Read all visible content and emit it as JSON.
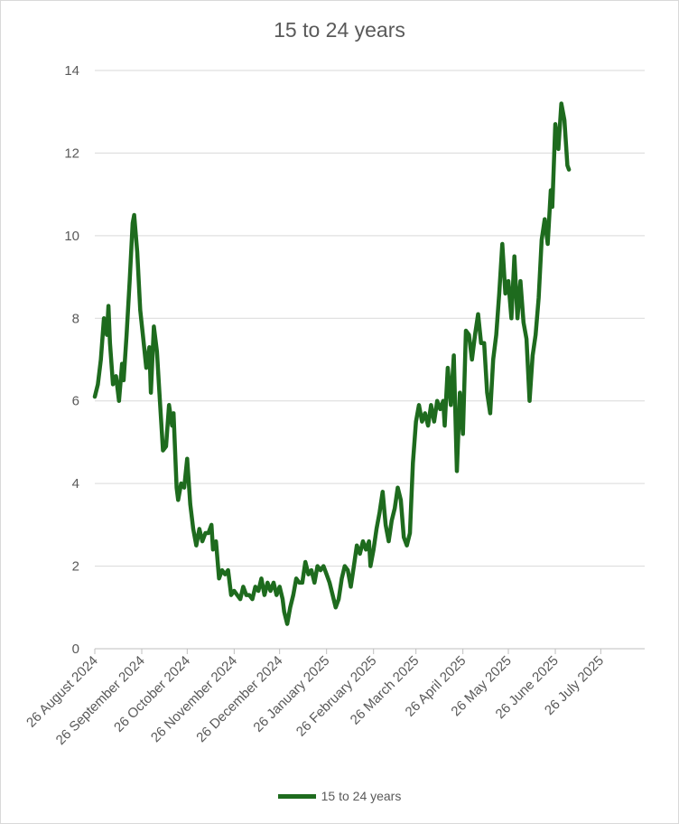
{
  "chart_data": {
    "type": "line",
    "title": "15 to 24 years",
    "xlabel": "",
    "ylabel": "",
    "ylim": [
      0,
      14
    ],
    "y_ticks": [
      0,
      2,
      4,
      6,
      8,
      10,
      12,
      14
    ],
    "x_tick_labels": [
      "26 August 2024",
      "26 September 2024",
      "26 October 2024",
      "26 November 2024",
      "26 December 2024",
      "26 January 2025",
      "26 February 2025",
      "26 March 2025",
      "26 April 2025",
      "26 May 2025",
      "26 June 2025",
      "26 July 2025"
    ],
    "x_range": [
      "2024-08-26",
      "2025-08-24"
    ],
    "grid": "horizontal",
    "legend_position": "bottom",
    "series": [
      {
        "name": "15 to 24 years",
        "color": "#1e6b1e",
        "points": [
          [
            "2024-08-26",
            6.1
          ],
          [
            "2024-08-28",
            6.4
          ],
          [
            "2024-08-30",
            7.0
          ],
          [
            "2024-09-01",
            8.0
          ],
          [
            "2024-09-03",
            7.6
          ],
          [
            "2024-09-04",
            8.3
          ],
          [
            "2024-09-05",
            7.4
          ],
          [
            "2024-09-07",
            6.4
          ],
          [
            "2024-09-09",
            6.6
          ],
          [
            "2024-09-11",
            6.0
          ],
          [
            "2024-09-13",
            6.9
          ],
          [
            "2024-09-14",
            6.5
          ],
          [
            "2024-09-16",
            7.6
          ],
          [
            "2024-09-18",
            8.9
          ],
          [
            "2024-09-20",
            10.3
          ],
          [
            "2024-09-21",
            10.5
          ],
          [
            "2024-09-23",
            9.6
          ],
          [
            "2024-09-25",
            8.2
          ],
          [
            "2024-09-27",
            7.5
          ],
          [
            "2024-09-29",
            6.8
          ],
          [
            "2024-10-01",
            7.3
          ],
          [
            "2024-10-02",
            6.2
          ],
          [
            "2024-10-04",
            7.8
          ],
          [
            "2024-10-06",
            7.2
          ],
          [
            "2024-10-08",
            6.0
          ],
          [
            "2024-10-10",
            4.8
          ],
          [
            "2024-10-12",
            4.9
          ],
          [
            "2024-10-14",
            5.9
          ],
          [
            "2024-10-16",
            5.4
          ],
          [
            "2024-10-17",
            5.7
          ],
          [
            "2024-10-19",
            3.9
          ],
          [
            "2024-10-20",
            3.6
          ],
          [
            "2024-10-22",
            4.0
          ],
          [
            "2024-10-24",
            3.9
          ],
          [
            "2024-10-26",
            4.6
          ],
          [
            "2024-10-28",
            3.5
          ],
          [
            "2024-10-30",
            2.9
          ],
          [
            "2024-11-01",
            2.5
          ],
          [
            "2024-11-03",
            2.9
          ],
          [
            "2024-11-05",
            2.6
          ],
          [
            "2024-11-07",
            2.8
          ],
          [
            "2024-11-09",
            2.8
          ],
          [
            "2024-11-11",
            3.0
          ],
          [
            "2024-11-12",
            2.4
          ],
          [
            "2024-11-14",
            2.6
          ],
          [
            "2024-11-16",
            1.7
          ],
          [
            "2024-11-18",
            1.9
          ],
          [
            "2024-11-20",
            1.8
          ],
          [
            "2024-11-22",
            1.9
          ],
          [
            "2024-11-24",
            1.3
          ],
          [
            "2024-11-26",
            1.4
          ],
          [
            "2024-11-28",
            1.3
          ],
          [
            "2024-11-30",
            1.2
          ],
          [
            "2024-12-02",
            1.5
          ],
          [
            "2024-12-04",
            1.3
          ],
          [
            "2024-12-06",
            1.3
          ],
          [
            "2024-12-08",
            1.2
          ],
          [
            "2024-12-10",
            1.5
          ],
          [
            "2024-12-12",
            1.4
          ],
          [
            "2024-12-14",
            1.7
          ],
          [
            "2024-12-16",
            1.3
          ],
          [
            "2024-12-18",
            1.6
          ],
          [
            "2024-12-20",
            1.4
          ],
          [
            "2024-12-22",
            1.6
          ],
          [
            "2024-12-24",
            1.3
          ],
          [
            "2024-12-26",
            1.5
          ],
          [
            "2024-12-28",
            1.2
          ],
          [
            "2024-12-29",
            0.9
          ],
          [
            "2024-12-31",
            0.6
          ],
          [
            "2025-01-02",
            1.0
          ],
          [
            "2025-01-04",
            1.3
          ],
          [
            "2025-01-06",
            1.7
          ],
          [
            "2025-01-08",
            1.6
          ],
          [
            "2025-01-10",
            1.6
          ],
          [
            "2025-01-12",
            2.1
          ],
          [
            "2025-01-14",
            1.8
          ],
          [
            "2025-01-16",
            1.9
          ],
          [
            "2025-01-18",
            1.6
          ],
          [
            "2025-01-20",
            2.0
          ],
          [
            "2025-01-22",
            1.9
          ],
          [
            "2025-01-24",
            2.0
          ],
          [
            "2025-01-26",
            1.8
          ],
          [
            "2025-01-28",
            1.6
          ],
          [
            "2025-01-30",
            1.3
          ],
          [
            "2025-02-01",
            1.0
          ],
          [
            "2025-02-03",
            1.2
          ],
          [
            "2025-02-05",
            1.7
          ],
          [
            "2025-02-07",
            2.0
          ],
          [
            "2025-02-09",
            1.9
          ],
          [
            "2025-02-11",
            1.5
          ],
          [
            "2025-02-13",
            2.0
          ],
          [
            "2025-02-15",
            2.5
          ],
          [
            "2025-02-17",
            2.3
          ],
          [
            "2025-02-19",
            2.6
          ],
          [
            "2025-02-21",
            2.4
          ],
          [
            "2025-02-23",
            2.6
          ],
          [
            "2025-02-24",
            2.0
          ],
          [
            "2025-02-26",
            2.4
          ],
          [
            "2025-02-28",
            2.9
          ],
          [
            "2025-03-02",
            3.3
          ],
          [
            "2025-03-04",
            3.8
          ],
          [
            "2025-03-06",
            3.0
          ],
          [
            "2025-03-08",
            2.6
          ],
          [
            "2025-03-10",
            3.1
          ],
          [
            "2025-03-12",
            3.4
          ],
          [
            "2025-03-14",
            3.9
          ],
          [
            "2025-03-16",
            3.6
          ],
          [
            "2025-03-18",
            2.7
          ],
          [
            "2025-03-20",
            2.5
          ],
          [
            "2025-03-22",
            2.8
          ],
          [
            "2025-03-24",
            4.5
          ],
          [
            "2025-03-26",
            5.5
          ],
          [
            "2025-03-28",
            5.9
          ],
          [
            "2025-03-30",
            5.5
          ],
          [
            "2025-04-01",
            5.7
          ],
          [
            "2025-04-03",
            5.4
          ],
          [
            "2025-04-05",
            5.9
          ],
          [
            "2025-04-07",
            5.5
          ],
          [
            "2025-04-09",
            6.0
          ],
          [
            "2025-04-11",
            5.8
          ],
          [
            "2025-04-13",
            6.0
          ],
          [
            "2025-04-14",
            5.4
          ],
          [
            "2025-04-16",
            6.8
          ],
          [
            "2025-04-18",
            5.9
          ],
          [
            "2025-04-20",
            7.1
          ],
          [
            "2025-04-22",
            4.3
          ],
          [
            "2025-04-24",
            6.2
          ],
          [
            "2025-04-26",
            5.2
          ],
          [
            "2025-04-28",
            7.7
          ],
          [
            "2025-04-30",
            7.6
          ],
          [
            "2025-05-02",
            7.0
          ],
          [
            "2025-05-04",
            7.6
          ],
          [
            "2025-05-06",
            8.1
          ],
          [
            "2025-05-08",
            7.4
          ],
          [
            "2025-05-10",
            7.4
          ],
          [
            "2025-05-12",
            6.2
          ],
          [
            "2025-05-14",
            5.7
          ],
          [
            "2025-05-16",
            7.0
          ],
          [
            "2025-05-18",
            7.6
          ],
          [
            "2025-05-20",
            8.6
          ],
          [
            "2025-05-22",
            9.8
          ],
          [
            "2025-05-24",
            8.6
          ],
          [
            "2025-05-26",
            8.9
          ],
          [
            "2025-05-28",
            8.0
          ],
          [
            "2025-05-30",
            9.5
          ],
          [
            "2025-06-01",
            8.0
          ],
          [
            "2025-06-03",
            8.9
          ],
          [
            "2025-06-05",
            7.9
          ],
          [
            "2025-06-07",
            7.5
          ],
          [
            "2025-06-09",
            6.0
          ],
          [
            "2025-06-11",
            7.1
          ],
          [
            "2025-06-13",
            7.6
          ],
          [
            "2025-06-15",
            8.5
          ],
          [
            "2025-06-17",
            9.9
          ],
          [
            "2025-06-19",
            10.4
          ],
          [
            "2025-06-21",
            9.8
          ],
          [
            "2025-06-23",
            11.1
          ],
          [
            "2025-06-24",
            10.7
          ],
          [
            "2025-06-26",
            12.7
          ],
          [
            "2025-06-28",
            12.1
          ],
          [
            "2025-06-30",
            13.2
          ],
          [
            "2025-07-02",
            12.8
          ],
          [
            "2025-07-04",
            11.7
          ],
          [
            "2025-07-05",
            11.6
          ]
        ]
      }
    ]
  }
}
